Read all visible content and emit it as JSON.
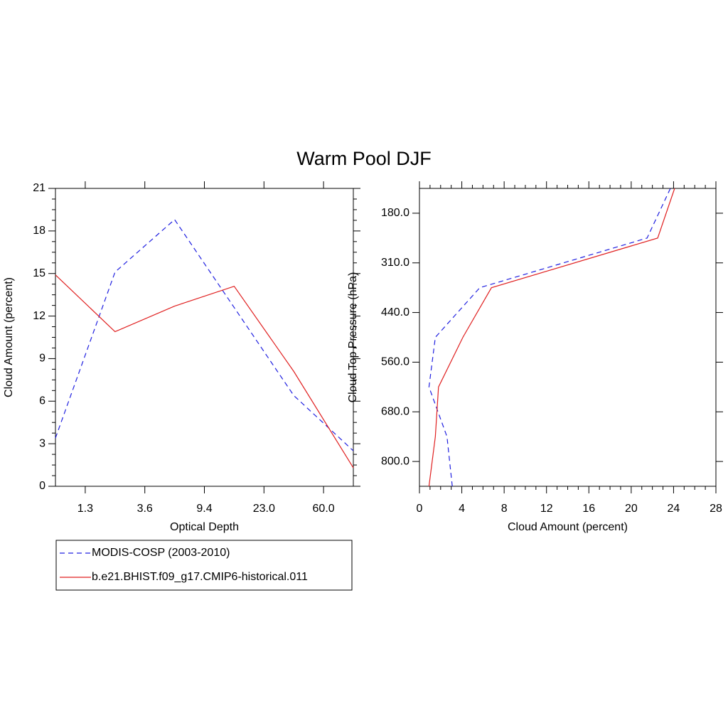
{
  "title": "Warm Pool DJF",
  "chart_data": [
    {
      "type": "line",
      "orientation": "vertical",
      "xlabel": "Optical Depth",
      "ylabel": "Cloud Amount (percent)",
      "xlim": [
        0,
        5
      ],
      "xticks": [
        {
          "value": 0.5,
          "label": "1.3"
        },
        {
          "value": 1.5,
          "label": "3.6"
        },
        {
          "value": 2.5,
          "label": "9.4"
        },
        {
          "value": 3.5,
          "label": "23.0"
        },
        {
          "value": 4.5,
          "label": "60.0"
        }
      ],
      "ylim": [
        0,
        21
      ],
      "yticks": [
        0,
        3,
        6,
        9,
        12,
        15,
        18,
        21
      ],
      "series": [
        {
          "name": "MODIS-COSP (2003-2010)",
          "color": "#2020e0",
          "style": "dashed",
          "values": [
            3.4,
            15.1,
            18.8,
            12.6,
            6.4,
            2.5
          ]
        },
        {
          "name": "b.e21.BHIST.f09_g17.CMIP6-historical.011",
          "color": "#e02020",
          "style": "solid",
          "values": [
            14.9,
            10.9,
            12.7,
            14.1,
            8.1,
            1.3
          ]
        }
      ]
    },
    {
      "type": "line",
      "orientation": "horizontal",
      "xlabel": "Cloud Amount (percent)",
      "ylabel": "Cloud Top Pressure (hPa)",
      "xlim": [
        0,
        28
      ],
      "xticks": [
        0,
        4,
        8,
        12,
        16,
        20,
        24,
        28
      ],
      "ylim": [
        0,
        6
      ],
      "yticks": [
        {
          "value": 0.5,
          "label": "800.0"
        },
        {
          "value": 1.5,
          "label": "680.0"
        },
        {
          "value": 2.5,
          "label": "560.0"
        },
        {
          "value": 3.5,
          "label": "440.0"
        },
        {
          "value": 4.5,
          "label": "310.0"
        },
        {
          "value": 5.5,
          "label": "180.0"
        }
      ],
      "series": [
        {
          "name": "MODIS-COSP (2003-2010)",
          "color": "#2020e0",
          "style": "dashed",
          "values": [
            3.1,
            2.6,
            0.9,
            1.5,
            5.7,
            21.5,
            23.7
          ]
        },
        {
          "name": "b.e21.BHIST.f09_g17.CMIP6-historical.011",
          "color": "#e02020",
          "style": "solid",
          "values": [
            0.9,
            1.5,
            1.8,
            4.1,
            6.8,
            22.5,
            24.1
          ]
        }
      ]
    }
  ]
}
